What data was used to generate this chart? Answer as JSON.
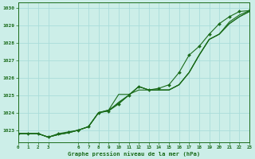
{
  "x_full": [
    0,
    1,
    2,
    3,
    4,
    5,
    6,
    7,
    8,
    9,
    10,
    11,
    12,
    13,
    14,
    15,
    16,
    17,
    18,
    19,
    20,
    21,
    22,
    23
  ],
  "series1": [
    1022.8,
    1022.8,
    1022.8,
    1022.6,
    1022.8,
    1022.9,
    1023.0,
    1023.2,
    1024.0,
    1024.1,
    1024.5,
    1025.0,
    1025.5,
    1025.3,
    1025.4,
    1025.6,
    1026.3,
    1027.3,
    1027.8,
    1028.5,
    1029.1,
    1029.5,
    1029.8,
    1029.85
  ],
  "series2": [
    1022.8,
    1022.8,
    1022.8,
    1022.6,
    1022.75,
    1022.85,
    1023.0,
    1023.2,
    1024.0,
    1024.1,
    1024.6,
    1025.0,
    1025.5,
    1025.3,
    1025.3,
    1025.3,
    1025.6,
    1026.3,
    1027.3,
    1028.2,
    1028.5,
    1029.1,
    1029.5,
    1029.8
  ],
  "series3": [
    1022.8,
    1022.8,
    1022.8,
    1022.6,
    1022.75,
    1022.85,
    1023.0,
    1023.2,
    1024.0,
    1024.15,
    1024.55,
    1025.0,
    1025.5,
    1025.3,
    1025.3,
    1025.3,
    1025.6,
    1026.3,
    1027.3,
    1028.2,
    1028.5,
    1029.1,
    1029.5,
    1029.8
  ],
  "series4": [
    1022.8,
    1022.8,
    1022.8,
    1022.6,
    1022.75,
    1022.85,
    1023.0,
    1023.2,
    1024.0,
    1024.15,
    1025.05,
    1025.05,
    1025.3,
    1025.3,
    1025.3,
    1025.3,
    1025.6,
    1026.3,
    1027.3,
    1028.2,
    1028.5,
    1029.2,
    1029.6,
    1029.85
  ],
  "bg_color": "#cceee8",
  "grid_color": "#aaddda",
  "line_color": "#1a6b1a",
  "xlabel": "Graphe pression niveau de la mer (hPa)",
  "xlim": [
    0,
    23
  ],
  "ylim": [
    1022.3,
    1030.3
  ],
  "yticks": [
    1023,
    1024,
    1025,
    1026,
    1027,
    1028,
    1029,
    1030
  ],
  "xticks": [
    0,
    1,
    2,
    3,
    6,
    7,
    8,
    9,
    10,
    11,
    12,
    13,
    14,
    15,
    16,
    17,
    18,
    19,
    20,
    21,
    22,
    23
  ]
}
